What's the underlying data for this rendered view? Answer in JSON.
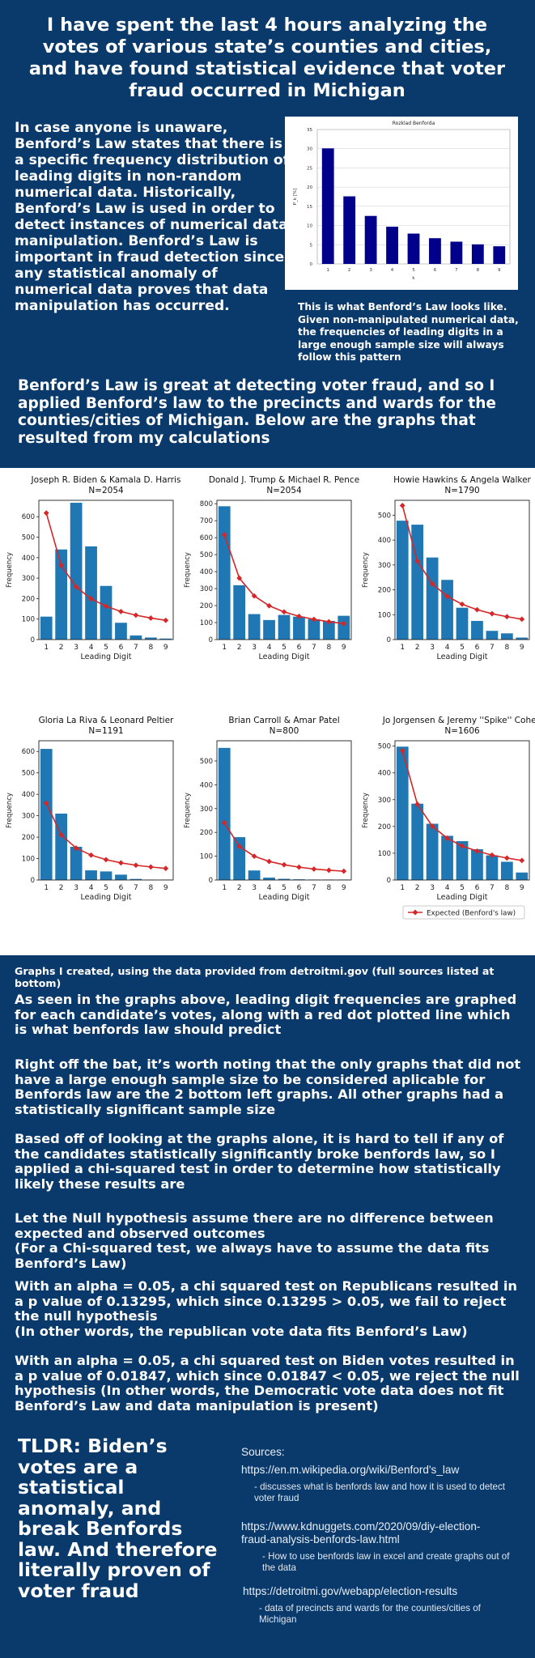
{
  "title": "I have spent the last 4 hours analyzing the votes of various state’s counties and cities, and have found statistical evidence that voter fraud occurred in Michigan",
  "intro": "In case anyone is unaware, Benford’s Law states that there is a specific frequency distribution of leading digits in non-random numerical data. Historically, Benford’s Law is used in order to detect instances of numerical data manipulation. Benford’s Law is important in fraud detection since any statistical anomaly of numerical data proves that data manipulation has occurred.",
  "benford_caption": "This is what Benford’s Law looks like. Given non-manipulated numerical data, the frequencies of leading digits in a large enough sample size will always follow this pattern",
  "para2": "Benford’s Law is great at detecting voter fraud, and so I applied Benford’s law to the precincts and wards for the counties/cities of Michigan. Below are the graphs that resulted from my calculations",
  "charts_caption": "Graphs I created, using the data provided from detroitmi.gov (full sources listed at bottom)",
  "paragraphs": [
    "As seen in the graphs above, leading digit frequencies are graphed for each candidate’s votes, along with a red dot plotted line which is what benfords law should predict",
    "Right off the bat, it’s worth noting that the only graphs that did not have a large enough sample size to be considered aplicable for Benfords law are the 2 bottom left graphs. All other graphs had a statistically significant sample size",
    "Based off of looking at the graphs alone, it is hard to tell if any of the candidates statistically significantly broke benfords law, so I applied a chi-squared test in order to determine how statistically likely these results are",
    "Let the Null hypothesis assume there are no difference between expected and observed outcomes\n(For a Chi-squared test, we always have to assume the data fits Benford’s Law)",
    "With an alpha = 0.05, a chi squared test on Republicans resulted in a p value of 0.13295, which since 0.13295 > 0.05, we fail to reject the null hypothesis\n(In other words, the republican vote data fits Benford’s Law)",
    "With an alpha = 0.05, a chi squared test on Biden votes resulted in a p value of 0.01847, which since 0.01847 < 0.05, we reject the null hypothesis (In other words, the Democratic vote data does not fit Benford’s Law and data manipulation is present)"
  ],
  "tldr": "TLDR: Biden’s votes are a statistical anomaly, and break Benfords law. And therefore literally proven of voter fraud",
  "sources": {
    "heading": "Sources:",
    "items": [
      {
        "url": "https://en.m.wikipedia.org/wiki/Benford's_law",
        "note": "- discusses what is benfords law and how it is used to detect voter fraud"
      },
      {
        "url": "https://www.kdnuggets.com/2020/09/diy-election-fraud-analysis-benfords-law.html",
        "note": "- How to use benfords law in excel and create graphs out of the data"
      },
      {
        "url": "https://detroitmi.gov/webapp/election-results",
        "note": "- data of precincts and wards for the counties/cities of Michigan"
      }
    ]
  },
  "colors": {
    "background": "#0a3a6b",
    "bar": "#1f77b4",
    "expected": "#d62728",
    "benford_bar": "#00008b"
  },
  "chart_data": [
    {
      "type": "bar",
      "title": "Rozklad Benforda",
      "xlabel": "k",
      "ylabel": "P_k [%]",
      "categories": [
        "1",
        "2",
        "3",
        "4",
        "5",
        "6",
        "7",
        "8",
        "9"
      ],
      "values": [
        30.1,
        17.6,
        12.5,
        9.7,
        7.9,
        6.7,
        5.8,
        5.1,
        4.6
      ],
      "ylim": [
        0,
        35
      ],
      "yticks": [
        0,
        5,
        10,
        15,
        20,
        25,
        30,
        35
      ]
    },
    {
      "type": "bar",
      "title": "Joseph R. Biden & Kamala D. Harris",
      "n_label": "N=2054",
      "xlabel": "Leading Digit",
      "ylabel": "Frequency",
      "categories": [
        "1",
        "2",
        "3",
        "4",
        "5",
        "6",
        "7",
        "8",
        "9"
      ],
      "values": [
        112,
        440,
        668,
        455,
        262,
        82,
        20,
        10,
        5
      ],
      "expected": [
        618,
        362,
        257,
        199,
        163,
        137,
        119,
        105,
        94
      ],
      "ylim": [
        0,
        680
      ],
      "yticks": [
        0,
        100,
        200,
        300,
        400,
        500,
        600
      ]
    },
    {
      "type": "bar",
      "title": "Donald J. Trump & Michael R. Pence",
      "n_label": "N=2054",
      "xlabel": "Leading Digit",
      "ylabel": "Frequency",
      "categories": [
        "1",
        "2",
        "3",
        "4",
        "5",
        "6",
        "7",
        "8",
        "9"
      ],
      "values": [
        785,
        320,
        150,
        115,
        145,
        135,
        120,
        110,
        140
      ],
      "expected": [
        618,
        362,
        257,
        199,
        163,
        137,
        119,
        105,
        94
      ],
      "ylim": [
        0,
        820
      ],
      "yticks": [
        0,
        100,
        200,
        300,
        400,
        500,
        600,
        700,
        800
      ]
    },
    {
      "type": "bar",
      "title": "Howie Hawkins & Angela Walker",
      "n_label": "N=1790",
      "xlabel": "Leading Digit",
      "ylabel": "Frequency",
      "categories": [
        "1",
        "2",
        "3",
        "4",
        "5",
        "6",
        "7",
        "8",
        "9"
      ],
      "values": [
        478,
        462,
        330,
        240,
        128,
        75,
        35,
        25,
        8
      ],
      "expected": [
        539,
        315,
        224,
        174,
        142,
        120,
        104,
        92,
        82
      ],
      "ylim": [
        0,
        560
      ],
      "yticks": [
        0,
        100,
        200,
        300,
        400,
        500
      ]
    },
    {
      "type": "bar",
      "title": "Gloria La Riva & Leonard Peltier",
      "n_label": "N=1191",
      "xlabel": "Leading Digit",
      "ylabel": "Frequency",
      "categories": [
        "1",
        "2",
        "3",
        "4",
        "5",
        "6",
        "7",
        "8",
        "9"
      ],
      "values": [
        612,
        310,
        155,
        45,
        40,
        25,
        5,
        2,
        2
      ],
      "expected": [
        359,
        210,
        149,
        116,
        95,
        80,
        69,
        61,
        54
      ],
      "ylim": [
        0,
        650
      ],
      "yticks": [
        0,
        100,
        200,
        300,
        400,
        500,
        600
      ]
    },
    {
      "type": "bar",
      "title": "Brian Carroll & Amar Patel",
      "n_label": "N=800",
      "xlabel": "Leading Digit",
      "ylabel": "Frequency",
      "categories": [
        "1",
        "2",
        "3",
        "4",
        "5",
        "6",
        "7",
        "8",
        "9"
      ],
      "values": [
        555,
        180,
        40,
        10,
        5,
        3,
        2,
        2,
        2
      ],
      "expected": [
        241,
        141,
        100,
        78,
        64,
        54,
        46,
        41,
        37
      ],
      "ylim": [
        0,
        585
      ],
      "yticks": [
        0,
        100,
        200,
        300,
        400,
        500
      ]
    },
    {
      "type": "bar",
      "title": "Jo Jorgensen & Jeremy ''Spike'' Cohen",
      "n_label": "N=1606",
      "xlabel": "Leading Digit",
      "ylabel": "Frequency",
      "categories": [
        "1",
        "2",
        "3",
        "4",
        "5",
        "6",
        "7",
        "8",
        "9"
      ],
      "values": [
        498,
        285,
        210,
        165,
        145,
        115,
        92,
        68,
        28
      ],
      "expected": [
        483,
        283,
        201,
        156,
        127,
        108,
        93,
        82,
        73
      ],
      "ylim": [
        0,
        520
      ],
      "yticks": [
        0,
        100,
        200,
        300,
        400,
        500
      ],
      "legend": "Expected (Benford's law)"
    }
  ]
}
